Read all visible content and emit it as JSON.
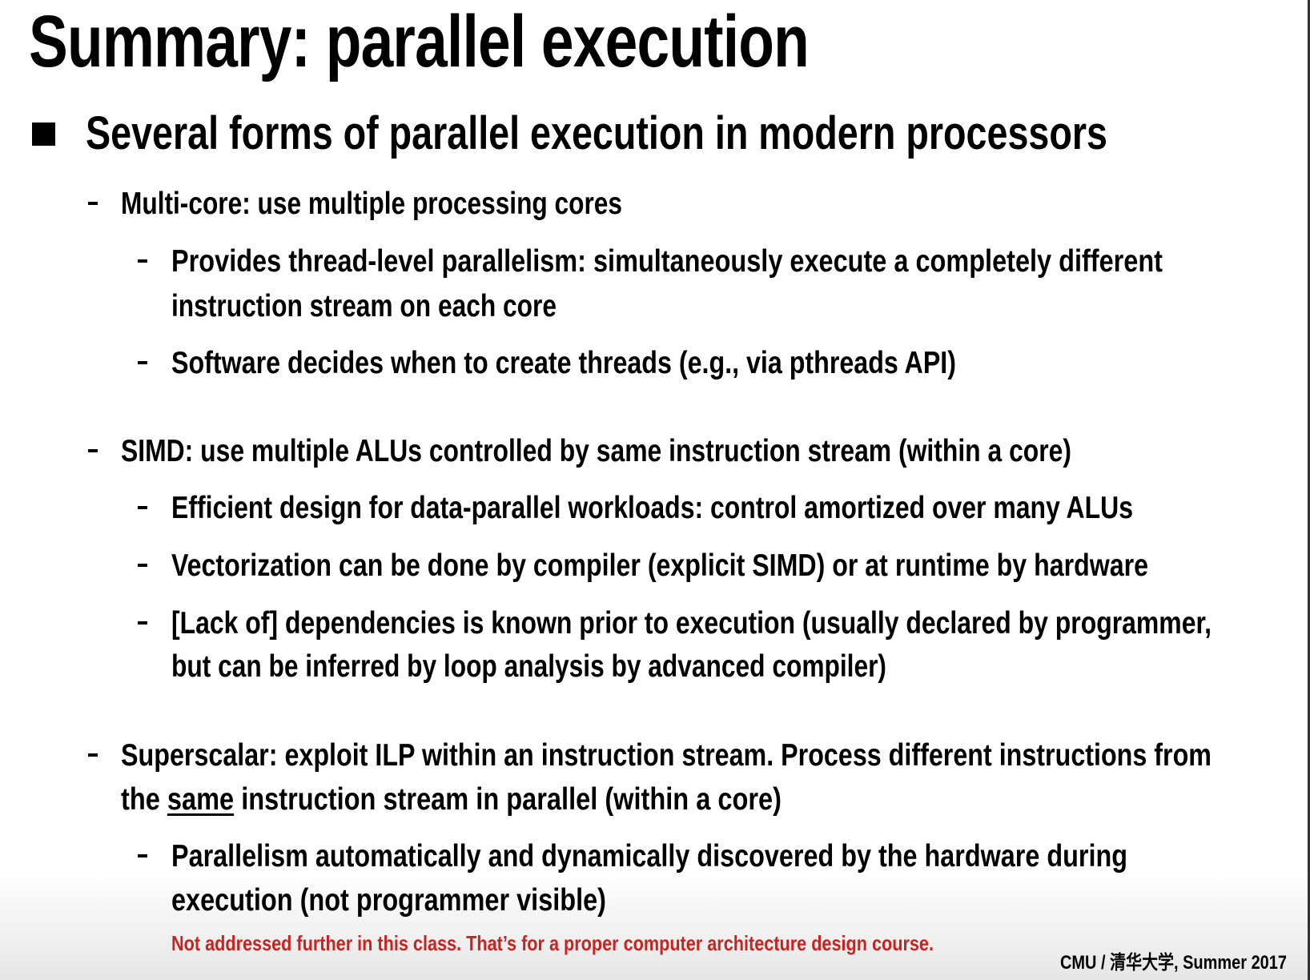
{
  "slide": {
    "title": "Summary: parallel execution",
    "bullet": "Several forms of parallel execution in modern processors",
    "multicore": {
      "heading": "Multi-core: use multiple processing cores",
      "sub1a": "Provides thread-level parallelism: simultaneously execute a completely different",
      "sub1b": "instruction stream on each core",
      "sub2": "Software decides when to create threads (e.g., via pthreads API)"
    },
    "simd": {
      "heading": "SIMD: use multiple ALUs controlled by same instruction stream (within a core)",
      "sub1": "Efficient design for data-parallel workloads: control amortized over many ALUs",
      "sub2": "Vectorization can be done by compiler (explicit SIMD) or at runtime by hardware",
      "sub3a": "[Lack of] dependencies is known prior to execution (usually declared by programmer,",
      "sub3b": "but can be inferred by loop analysis by advanced compiler)"
    },
    "superscalar": {
      "heading_a": "Superscalar: exploit ILP within an instruction stream.  Process different instructions from",
      "heading_b_pre": "the ",
      "heading_b_u": "same",
      "heading_b_post": " instruction stream in parallel (within a core)",
      "sub1a": "Parallelism automatically and dynamically discovered by the hardware during",
      "sub1b": "execution (not programmer visible)",
      "note": "Not addressed further in this class. That’s for a proper computer architecture design course."
    },
    "footer": "CMU / 清华大学, Summer 2017",
    "colors": {
      "note": "#c8231e",
      "text": "#000000"
    }
  }
}
